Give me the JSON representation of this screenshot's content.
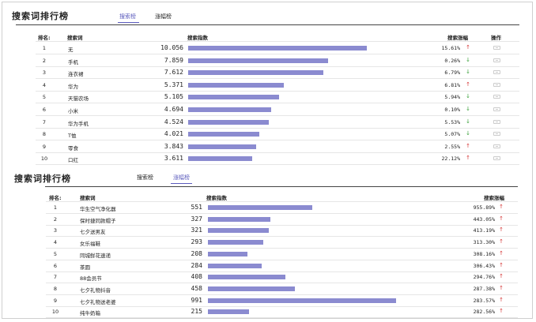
{
  "top": {
    "title": "搜索词排行榜",
    "tabs": [
      {
        "label": "搜索榜",
        "active": true
      },
      {
        "label": "涨幅榜",
        "active": false
      }
    ],
    "headers": {
      "rank": "排名:",
      "keyword": "搜索词",
      "index": "搜索指数",
      "growth": "搜索涨幅",
      "ops": "操作"
    },
    "rows": [
      {
        "rank": "1",
        "keyword": "无",
        "index": "10.056",
        "value": 10.056,
        "growth": "15.61%",
        "dir": "up"
      },
      {
        "rank": "2",
        "keyword": "手机",
        "index": "7.859",
        "value": 7.859,
        "growth": "0.26%",
        "dir": "down"
      },
      {
        "rank": "3",
        "keyword": "连衣裙",
        "index": "7.612",
        "value": 7.612,
        "growth": "6.79%",
        "dir": "down"
      },
      {
        "rank": "4",
        "keyword": "华为",
        "index": "5.371",
        "value": 5.371,
        "growth": "6.81%",
        "dir": "up"
      },
      {
        "rank": "5",
        "keyword": "天猫农场",
        "index": "5.105",
        "value": 5.105,
        "growth": "5.94%",
        "dir": "down"
      },
      {
        "rank": "6",
        "keyword": "小米",
        "index": "4.694",
        "value": 4.694,
        "growth": "0.10%",
        "dir": "down"
      },
      {
        "rank": "7",
        "keyword": "华为手机",
        "index": "4.524",
        "value": 4.524,
        "growth": "5.53%",
        "dir": "down"
      },
      {
        "rank": "8",
        "keyword": "T恤",
        "index": "4.021",
        "value": 4.021,
        "growth": "5.07%",
        "dir": "down"
      },
      {
        "rank": "9",
        "keyword": "零食",
        "index": "3.843",
        "value": 3.843,
        "growth": "2.55%",
        "dir": "up"
      },
      {
        "rank": "10",
        "keyword": "口红",
        "index": "3.611",
        "value": 3.611,
        "growth": "22.12%",
        "dir": "up"
      }
    ]
  },
  "bottom": {
    "title": "搜索词排行榜",
    "tabs": [
      {
        "label": "搜索榜",
        "active": false
      },
      {
        "label": "涨幅榜",
        "active": true
      }
    ],
    "headers": {
      "rank": "排名:",
      "keyword": "搜索词",
      "index": "搜索指数",
      "growth": "搜索涨幅"
    },
    "rows": [
      {
        "rank": "1",
        "keyword": "华生空气净化器",
        "index": "551",
        "value": 551,
        "growth": "955.89%",
        "dir": "up"
      },
      {
        "rank": "2",
        "keyword": "保时捷同款帽子",
        "index": "327",
        "value": 327,
        "growth": "443.05%",
        "dir": "up"
      },
      {
        "rank": "3",
        "keyword": "七夕送男友",
        "index": "321",
        "value": 321,
        "growth": "413.19%",
        "dir": "up"
      },
      {
        "rank": "4",
        "keyword": "女乐福鞋",
        "index": "293",
        "value": 293,
        "growth": "313.30%",
        "dir": "up"
      },
      {
        "rank": "5",
        "keyword": "同城鲜花速递",
        "index": "208",
        "value": 208,
        "growth": "308.16%",
        "dir": "up"
      },
      {
        "rank": "6",
        "keyword": "茶圆",
        "index": "284",
        "value": 284,
        "growth": "306.43%",
        "dir": "up"
      },
      {
        "rank": "7",
        "keyword": "88会员节",
        "index": "408",
        "value": 408,
        "growth": "294.76%",
        "dir": "up"
      },
      {
        "rank": "8",
        "keyword": "七夕礼物抖音",
        "index": "458",
        "value": 458,
        "growth": "287.38%",
        "dir": "up"
      },
      {
        "rank": "9",
        "keyword": "七夕礼物送老婆",
        "index": "991",
        "value": 991,
        "growth": "283.57%",
        "dir": "up"
      },
      {
        "rank": "10",
        "keyword": "纯牛奶箱",
        "index": "215",
        "value": 215,
        "growth": "282.56%",
        "dir": "up"
      }
    ]
  },
  "colors": {
    "accent": "#5b5bbd",
    "bar": "#8b8bd0",
    "up": "#d63a3a",
    "down": "#3aa03a"
  },
  "icons": {
    "up": "arrow-up-icon",
    "down": "arrow-down-icon",
    "op": "trend-chart-icon"
  }
}
